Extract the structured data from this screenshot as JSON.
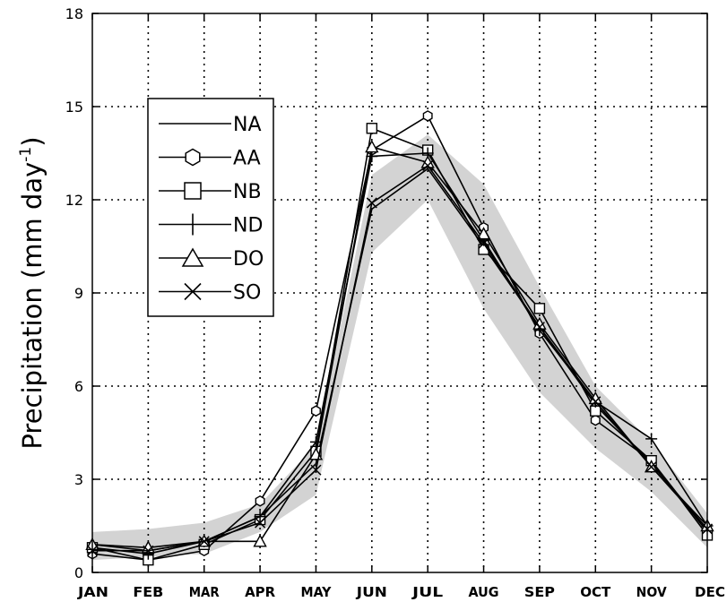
{
  "chart_data": {
    "type": "line",
    "title": "",
    "xlabel": "",
    "ylabel": "Precipitation (mm day",
    "ylabel_sup": "-1",
    "ylabel_close": ")",
    "categories": [
      "JAN",
      "FEB",
      "MAR",
      "APR",
      "MAY",
      "JUN",
      "JUL",
      "AUG",
      "SEP",
      "OCT",
      "NOV",
      "DEC"
    ],
    "ylim": [
      0,
      18
    ],
    "yticks": [
      0,
      3,
      6,
      9,
      12,
      15,
      18
    ],
    "grid": true,
    "legend": "top-left",
    "band": {
      "color": "#d3d3d3",
      "lower": [
        0.4,
        0.5,
        0.6,
        1.3,
        2.5,
        10.3,
        12.0,
        8.5,
        5.8,
        4.0,
        2.6,
        0.8
      ],
      "upper": [
        1.3,
        1.4,
        1.6,
        2.2,
        4.1,
        12.8,
        14.1,
        12.5,
        9.2,
        6.0,
        4.2,
        1.9
      ]
    },
    "series": [
      {
        "name": "NA",
        "marker": "none",
        "values": [
          0.9,
          0.7,
          1.0,
          1.8,
          3.5,
          11.7,
          13.0,
          10.5,
          7.9,
          5.4,
          3.5,
          1.4
        ]
      },
      {
        "name": "AA",
        "marker": "hexagon",
        "values": [
          0.6,
          0.4,
          0.7,
          2.3,
          5.2,
          13.6,
          14.7,
          11.1,
          7.7,
          4.9,
          3.6,
          1.3
        ]
      },
      {
        "name": "NB",
        "marker": "square",
        "values": [
          0.8,
          0.4,
          0.9,
          1.7,
          3.9,
          14.3,
          13.6,
          10.4,
          8.5,
          5.2,
          3.6,
          1.2
        ]
      },
      {
        "name": "ND",
        "marker": "plus",
        "values": [
          0.8,
          0.6,
          1.0,
          1.8,
          4.2,
          13.4,
          13.5,
          10.7,
          7.8,
          5.5,
          4.3,
          1.5
        ]
      },
      {
        "name": "DO",
        "marker": "triangle",
        "values": [
          0.9,
          0.8,
          1.0,
          1.0,
          3.8,
          13.7,
          13.2,
          10.9,
          8.0,
          5.6,
          3.4,
          1.5
        ]
      },
      {
        "name": "SO",
        "marker": "x",
        "values": [
          0.7,
          0.7,
          1.0,
          1.6,
          3.3,
          11.9,
          13.1,
          10.6,
          7.9,
          5.5,
          3.4,
          1.4
        ]
      }
    ]
  }
}
